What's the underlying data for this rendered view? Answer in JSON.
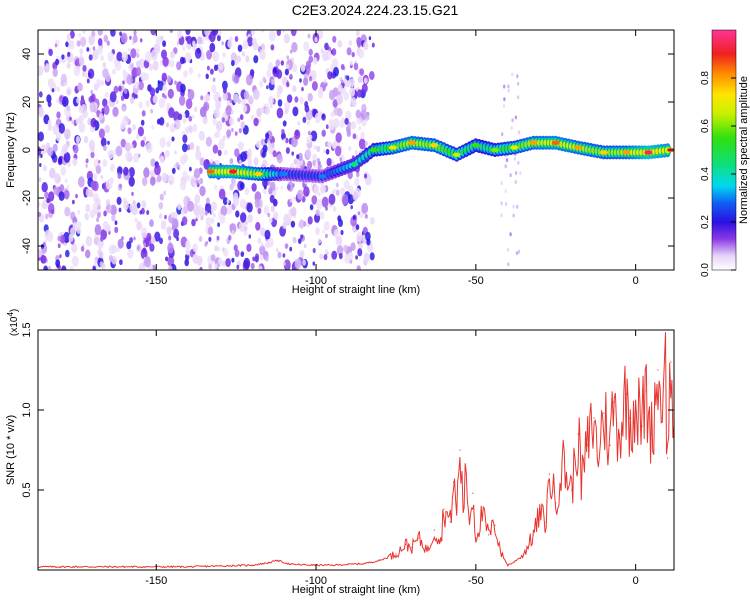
{
  "title": "C2E3.2024.224.23.15.G21",
  "chart_data": [
    {
      "type": "heatmap",
      "xlabel": "Height of straight line (km)",
      "ylabel": "Frequency (Hz)",
      "xlim": [
        -187,
        12
      ],
      "ylim": [
        -50,
        50
      ],
      "xticks": [
        -150,
        -100,
        -50,
        0
      ],
      "yticks": [
        -40,
        -20,
        0,
        20,
        40
      ],
      "colorbar": {
        "label": "Normalized spectral amplitude",
        "range": [
          0,
          1
        ],
        "ticks": [
          "0.0",
          "0.2",
          "0.4",
          "0.6",
          "0.8"
        ]
      },
      "ridge": [
        {
          "x": -133,
          "y": -9,
          "amp": 0.85
        },
        {
          "x": -126,
          "y": -9,
          "amp": 0.9
        },
        {
          "x": -118,
          "y": -10,
          "amp": 0.75
        },
        {
          "x": -110,
          "y": -10,
          "amp": 0.3
        },
        {
          "x": -98,
          "y": -11,
          "amp": 0.3
        },
        {
          "x": -88,
          "y": -6,
          "amp": 0.45
        },
        {
          "x": -82,
          "y": 0,
          "amp": 0.55
        },
        {
          "x": -76,
          "y": 1,
          "amp": 0.7
        },
        {
          "x": -70,
          "y": 3,
          "amp": 0.8
        },
        {
          "x": -63,
          "y": 2,
          "amp": 0.75
        },
        {
          "x": -56,
          "y": -2,
          "amp": 0.65
        },
        {
          "x": -50,
          "y": 2,
          "amp": 0.55
        },
        {
          "x": -44,
          "y": 0,
          "amp": 0.6
        },
        {
          "x": -38,
          "y": 1,
          "amp": 0.7
        },
        {
          "x": -32,
          "y": 3,
          "amp": 0.8
        },
        {
          "x": -25,
          "y": 3,
          "amp": 0.85
        },
        {
          "x": -18,
          "y": 1,
          "amp": 0.8
        },
        {
          "x": -10,
          "y": -1,
          "amp": 0.75
        },
        {
          "x": -3,
          "y": -1,
          "amp": 0.8
        },
        {
          "x": 4,
          "y": -1,
          "amp": 0.95
        },
        {
          "x": 11,
          "y": 0,
          "amp": 0.85
        }
      ]
    },
    {
      "type": "line",
      "xlabel": "Height of straight line (km)",
      "ylabel": "SNR (10 * v/v)",
      "y_scale_label": "(x10",
      "y_scale_exp": "4",
      "y_scale_suffix": ")",
      "xlim": [
        -187,
        12
      ],
      "ylim": [
        0,
        1.5
      ],
      "xticks": [
        -150,
        -100,
        -50,
        0
      ],
      "yticks": [
        0.5,
        1.0,
        1.5
      ],
      "series": [
        {
          "color": "#e8352f",
          "x": [
            -187,
            -180,
            -170,
            -160,
            -150,
            -140,
            -130,
            -120,
            -115,
            -112,
            -108,
            -100,
            -95,
            -90,
            -85,
            -80,
            -75,
            -72,
            -70,
            -68,
            -65,
            -63,
            -61,
            -60,
            -58,
            -57,
            -56,
            -55,
            -54,
            -53,
            -52,
            -51,
            -50,
            -48,
            -46,
            -44,
            -42,
            -40,
            -38,
            -35,
            -32,
            -30,
            -28,
            -27,
            -25,
            -23,
            -20,
            -18,
            -17,
            -15,
            -13,
            -12,
            -10,
            -8,
            -7,
            -5,
            -3,
            -2,
            0,
            2,
            3,
            5,
            7,
            8,
            9,
            10,
            11,
            12
          ],
          "values": [
            0.02,
            0.02,
            0.02,
            0.02,
            0.02,
            0.02,
            0.025,
            0.03,
            0.045,
            0.06,
            0.035,
            0.03,
            0.03,
            0.035,
            0.04,
            0.06,
            0.1,
            0.16,
            0.14,
            0.2,
            0.12,
            0.25,
            0.18,
            0.38,
            0.3,
            0.55,
            0.36,
            0.75,
            0.4,
            0.6,
            0.3,
            0.48,
            0.2,
            0.35,
            0.22,
            0.28,
            0.1,
            0.03,
            0.05,
            0.1,
            0.22,
            0.35,
            0.3,
            0.6,
            0.42,
            0.68,
            0.5,
            0.85,
            0.55,
            0.78,
            0.95,
            0.7,
            0.98,
            0.78,
            1.05,
            0.85,
            1.1,
            0.95,
            1.05,
            0.9,
            1.12,
            0.85,
            1.25,
            0.95,
            1.5,
            0.7,
            1.3,
            0.9
          ]
        }
      ]
    }
  ]
}
